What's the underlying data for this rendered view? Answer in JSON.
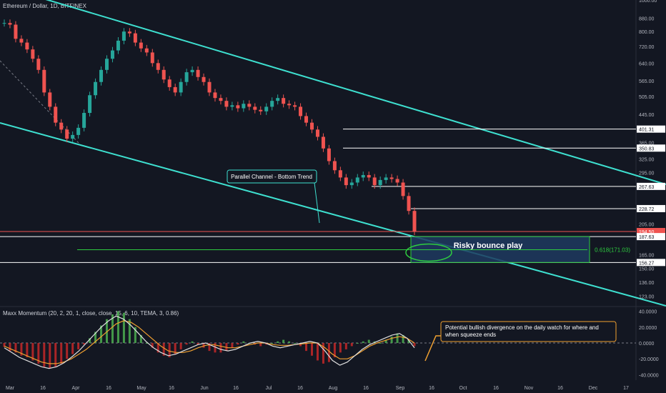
{
  "header": {
    "title": "Ethereum / Dollar, 1D, BITFINEX"
  },
  "indicator": {
    "title": "Maxx Momentum (20, 2, 20, 1, close, close, 15, 6, 10, TEMA, 3, 0.86)"
  },
  "colors": {
    "bg": "#131722",
    "up": "#26a69a",
    "down": "#ef5350",
    "channel": "#3ee0d0",
    "hline": "#ffffff",
    "fib": "#2ecc40",
    "zone": "#1e3a5f"
  },
  "chart_data": [
    {
      "type": "candlestick",
      "title": "Ethereum / Dollar, 1D, BITFINEX",
      "x_ticks": [
        "Mar",
        "16",
        "Apr",
        "16",
        "May",
        "16",
        "Jun",
        "16",
        "Jul",
        "16",
        "Aug",
        "16",
        "Sep",
        "16",
        "Oct",
        "16",
        "Nov",
        "16",
        "Dec",
        "17"
      ],
      "y_scale": "log",
      "y_ticks": [
        "1000.00",
        "880.00",
        "800.00",
        "720.00",
        "640.00",
        "565.00",
        "505.00",
        "445.00",
        "401.31",
        "365.00",
        "350.83",
        "325.00",
        "295.00",
        "267.63",
        "228.72",
        "205.00",
        "194.50",
        "187.63",
        "165.00",
        "156.27",
        "150.00",
        "136.00",
        "123.00"
      ],
      "ylim": [
        115,
        1000
      ],
      "price_series": [
        850,
        840,
        760,
        740,
        705,
        660,
        610,
        520,
        470,
        420,
        400,
        375,
        385,
        405,
        450,
        510,
        560,
        610,
        660,
        700,
        750,
        800,
        790,
        740,
        710,
        690,
        640,
        610,
        570,
        540,
        520,
        560,
        600,
        610,
        580,
        560,
        520,
        500,
        490,
        470,
        475,
        465,
        480,
        470,
        460,
        455,
        470,
        490,
        500,
        480,
        475,
        470,
        440,
        420,
        400,
        380,
        350,
        320,
        300,
        285,
        270,
        275,
        285,
        290,
        285,
        270,
        280,
        285,
        282,
        275,
        250,
        225,
        194.5
      ],
      "levels": [
        401.31,
        350.83,
        267.63,
        228.72,
        194.5,
        187.63,
        156.27
      ],
      "current_price": "194.50",
      "fib_label": "0.618(171.03)",
      "fib_value": 171.03,
      "zone": {
        "label": "Risky bounce play",
        "top": 187.63,
        "bottom": 156.27
      },
      "annotations": [
        {
          "text": "Parallel Channel - Bottom Trend"
        },
        {
          "text": "Potential bullish divergence on the daily watch for where and when squeeze ends"
        }
      ]
    },
    {
      "type": "bar",
      "title": "Maxx Momentum (20, 2, 20, 1, close, close, 15, 6, 10, TEMA, 3, 0.86)",
      "y_ticks": [
        "40.0000",
        "20.0000",
        "0.0000",
        "-20.0000",
        "-40.0000"
      ],
      "ylim": [
        -45,
        45
      ],
      "histogram": [
        -5,
        -10,
        -12,
        -16,
        -18,
        -22,
        -26,
        -30,
        -32,
        -30,
        -26,
        -20,
        -14,
        -8,
        -2,
        6,
        14,
        22,
        30,
        36,
        40,
        38,
        30,
        20,
        10,
        0,
        -6,
        -12,
        -16,
        -18,
        -14,
        -8,
        -2,
        2,
        -2,
        -6,
        -10,
        -12,
        -12,
        -10,
        -6,
        -2,
        2,
        0,
        -2,
        -4,
        -2,
        0,
        2,
        4,
        2,
        0,
        -4,
        -10,
        -16,
        -22,
        -26,
        -24,
        -18,
        -12,
        -8,
        -4,
        0,
        2,
        4,
        2,
        0,
        4,
        8,
        12,
        10,
        4,
        -4
      ],
      "fast_line": [
        -6,
        -12,
        -18,
        -22,
        -26,
        -30,
        -32,
        -30,
        -25,
        -18,
        -10,
        0,
        10,
        20,
        28,
        34,
        30,
        22,
        12,
        2,
        -6,
        -12,
        -16,
        -14,
        -10,
        -6,
        -2,
        0,
        -4,
        -8,
        -10,
        -8,
        -4,
        0,
        2,
        0,
        -4,
        -6,
        -4,
        -2,
        0,
        2,
        0,
        -10,
        -22,
        -28,
        -24,
        -16,
        -8,
        -2,
        2,
        6,
        10,
        12,
        6,
        -6
      ],
      "slow_line": [
        -4,
        -8,
        -12,
        -16,
        -20,
        -24,
        -26,
        -26,
        -24,
        -20,
        -14,
        -8,
        0,
        8,
        16,
        24,
        28,
        26,
        20,
        12,
        4,
        -4,
        -10,
        -12,
        -12,
        -10,
        -6,
        -3,
        -2,
        -4,
        -6,
        -6,
        -4,
        -2,
        0,
        0,
        -2,
        -3,
        -3,
        -2,
        -1,
        0,
        0,
        -6,
        -14,
        -20,
        -20,
        -16,
        -10,
        -4,
        0,
        3,
        6,
        8,
        6,
        0
      ]
    }
  ]
}
